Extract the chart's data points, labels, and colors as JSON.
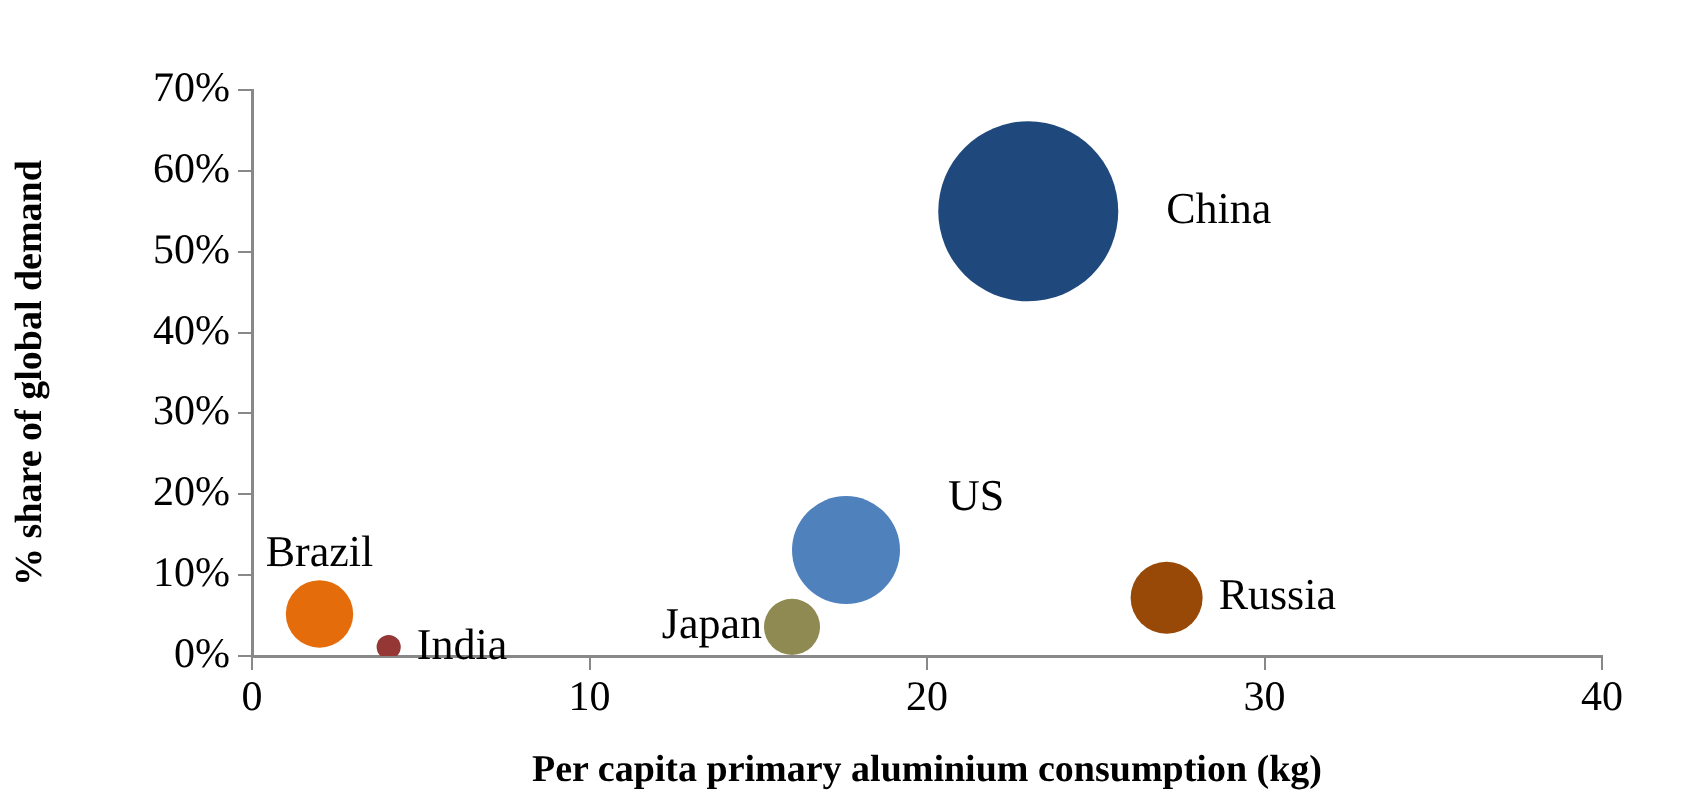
{
  "chart_data": {
    "type": "bubble",
    "xlabel": "Per capita primary aluminium consumption (kg)",
    "ylabel": "% share of global demand",
    "xlim": [
      0,
      40
    ],
    "xticks": [
      0,
      10,
      20,
      30,
      40
    ],
    "ylim": [
      0,
      70
    ],
    "yticks": [
      {
        "value": 0,
        "label": "0%"
      },
      {
        "value": 10,
        "label": "10%"
      },
      {
        "value": 20,
        "label": "20%"
      },
      {
        "value": 30,
        "label": "30%"
      },
      {
        "value": 40,
        "label": "40%"
      },
      {
        "value": 50,
        "label": "50%"
      },
      {
        "value": 60,
        "label": "60%"
      },
      {
        "value": 70,
        "label": "70%"
      }
    ],
    "grid": false,
    "legend": false,
    "series": [
      {
        "name": "China",
        "color": "#1f497d",
        "x": [
          23.0
        ],
        "values": [
          55
        ],
        "sizes": [
          1
        ]
      },
      {
        "name": "US",
        "color": "#4f81bd",
        "x": [
          17.6
        ],
        "values": [
          13.1
        ],
        "sizes": [
          0.36
        ]
      },
      {
        "name": "Russia",
        "color": "#984807",
        "x": [
          27.1
        ],
        "values": [
          7.2
        ],
        "sizes": [
          0.16
        ]
      },
      {
        "name": "Japan",
        "color": "#8f8a52",
        "x": [
          16.0
        ],
        "values": [
          3.6
        ],
        "sizes": [
          0.097
        ]
      },
      {
        "name": "Brazil",
        "color": "#e46c0a",
        "x": [
          2.0
        ],
        "values": [
          5.2
        ],
        "sizes": [
          0.14
        ]
      },
      {
        "name": "India",
        "color": "#953735",
        "x": [
          4.05
        ],
        "values": [
          1.1
        ],
        "sizes": [
          0.018
        ]
      }
    ]
  }
}
